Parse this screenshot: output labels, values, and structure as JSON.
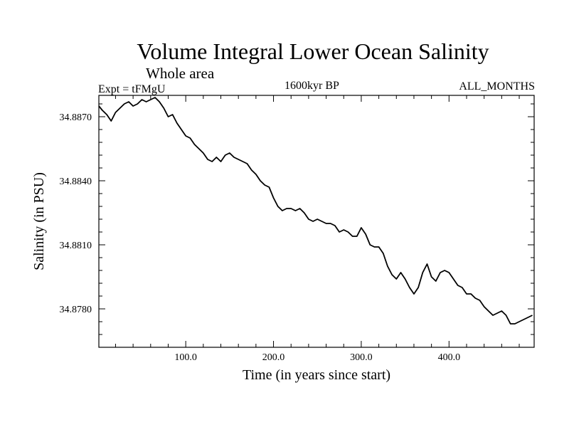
{
  "chart_data": {
    "type": "line",
    "title": "Volume Integral Lower Ocean Salinity",
    "subtitle": "Whole area",
    "left_label": "Expt = tFMgU",
    "center_label": "1600kyr BP",
    "right_label": "ALL_MONTHS",
    "xlabel": "Time (in years since start)",
    "ylabel": "Salinity (in PSU)",
    "xlim": [
      1,
      497
    ],
    "ylim": [
      34.8762,
      34.888
    ],
    "xticks": [
      {
        "v": 100,
        "label": "100.0"
      },
      {
        "v": 200,
        "label": "200.0"
      },
      {
        "v": 300,
        "label": "300.0"
      },
      {
        "v": 400,
        "label": "400.0"
      }
    ],
    "yticks": [
      {
        "v": 34.878,
        "label": "34.8780"
      },
      {
        "v": 34.881,
        "label": "34.8810"
      },
      {
        "v": 34.884,
        "label": "34.8840"
      },
      {
        "v": 34.887,
        "label": "34.8870"
      }
    ],
    "x": [
      1,
      5,
      10,
      15,
      20,
      25,
      30,
      35,
      40,
      45,
      50,
      55,
      60,
      65,
      70,
      75,
      80,
      85,
      90,
      95,
      100,
      105,
      110,
      115,
      120,
      125,
      130,
      135,
      140,
      145,
      150,
      155,
      160,
      165,
      170,
      175,
      180,
      185,
      190,
      195,
      200,
      205,
      210,
      215,
      220,
      225,
      230,
      235,
      240,
      245,
      250,
      255,
      260,
      265,
      270,
      275,
      280,
      285,
      290,
      295,
      300,
      305,
      310,
      315,
      320,
      325,
      330,
      335,
      340,
      345,
      350,
      355,
      360,
      365,
      370,
      375,
      380,
      385,
      390,
      395,
      400,
      405,
      410,
      415,
      420,
      425,
      430,
      435,
      440,
      445,
      450,
      455,
      460,
      465,
      470,
      475,
      480,
      485,
      490,
      495
    ],
    "series": [
      {
        "name": "Lower ocean salinity",
        "values": [
          34.8875,
          34.8873,
          34.8871,
          34.8868,
          34.8872,
          34.8874,
          34.8876,
          34.8877,
          34.8875,
          34.8876,
          34.8878,
          34.8877,
          34.8878,
          34.8879,
          34.8877,
          34.8874,
          34.887,
          34.8871,
          34.8867,
          34.8864,
          34.8861,
          34.886,
          34.8857,
          34.8855,
          34.8853,
          34.885,
          34.8849,
          34.8851,
          34.8849,
          34.8852,
          34.8853,
          34.8851,
          34.885,
          34.8849,
          34.8848,
          34.8845,
          34.8843,
          34.884,
          34.8838,
          34.8837,
          34.8832,
          34.8828,
          34.8826,
          34.8827,
          34.8827,
          34.8826,
          34.8827,
          34.8825,
          34.8822,
          34.8821,
          34.8822,
          34.8821,
          34.882,
          34.882,
          34.8819,
          34.8816,
          34.8817,
          34.8816,
          34.8814,
          34.8814,
          34.8818,
          34.8815,
          34.881,
          34.8809,
          34.8809,
          34.8806,
          34.88,
          34.8796,
          34.8794,
          34.8797,
          34.8794,
          34.879,
          34.8787,
          34.879,
          34.8797,
          34.8801,
          34.8795,
          34.8793,
          34.8797,
          34.8798,
          34.8797,
          34.8794,
          34.8791,
          34.879,
          34.8787,
          34.8787,
          34.8785,
          34.8784,
          34.8781,
          34.8779,
          34.8777,
          34.8778,
          34.8779,
          34.8777,
          34.8773,
          34.8773,
          34.8774,
          34.8775,
          34.8776,
          34.8777
        ]
      }
    ]
  }
}
